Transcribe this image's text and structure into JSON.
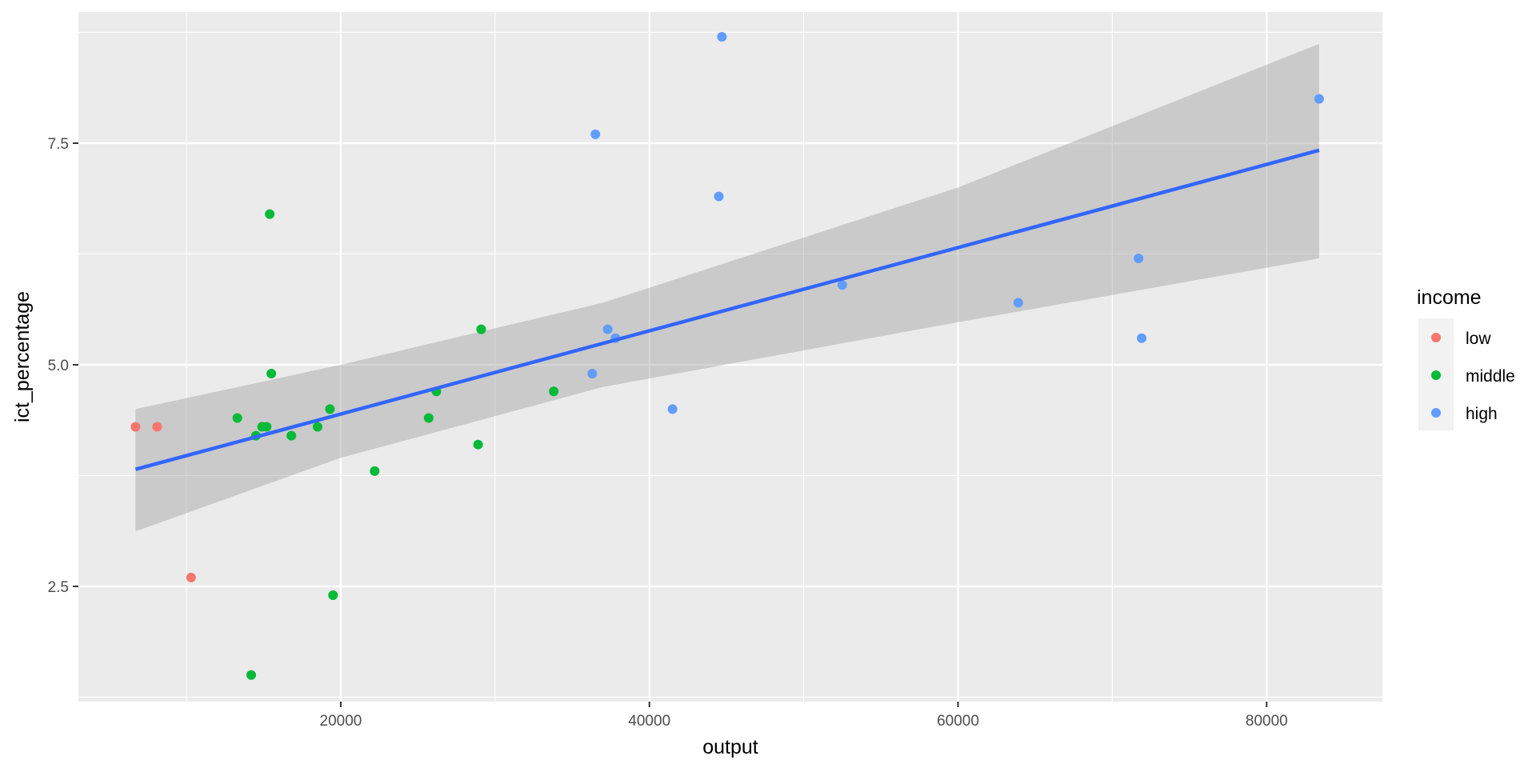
{
  "chart_data": {
    "type": "scatter",
    "xlabel": "output",
    "ylabel": "ict_percentage",
    "xlim": [
      3000,
      87500
    ],
    "ylim": [
      1.2,
      8.98
    ],
    "x_ticks": [
      20000,
      40000,
      60000,
      80000
    ],
    "x_tick_labels": [
      "20000",
      "40000",
      "60000",
      "80000"
    ],
    "y_ticks": [
      2.5,
      5.0,
      7.5
    ],
    "y_tick_labels": [
      "2.5",
      "5.0",
      "7.5"
    ],
    "grid": true,
    "legend": {
      "title": "income",
      "placement": "right"
    },
    "series": [
      {
        "name": "low",
        "color": "#F8766D",
        "points": [
          {
            "x": 6700,
            "y": 4.3
          },
          {
            "x": 8100,
            "y": 4.3
          },
          {
            "x": 10300,
            "y": 2.6
          }
        ]
      },
      {
        "name": "middle",
        "color": "#00BA38",
        "points": [
          {
            "x": 13300,
            "y": 4.4
          },
          {
            "x": 14200,
            "y": 1.5
          },
          {
            "x": 14500,
            "y": 4.2
          },
          {
            "x": 14900,
            "y": 4.3
          },
          {
            "x": 15200,
            "y": 4.3
          },
          {
            "x": 15400,
            "y": 6.7
          },
          {
            "x": 15500,
            "y": 4.9
          },
          {
            "x": 16800,
            "y": 4.2
          },
          {
            "x": 18500,
            "y": 4.3
          },
          {
            "x": 19300,
            "y": 4.5
          },
          {
            "x": 19500,
            "y": 2.4
          },
          {
            "x": 22200,
            "y": 3.8
          },
          {
            "x": 25700,
            "y": 4.4
          },
          {
            "x": 26200,
            "y": 4.7
          },
          {
            "x": 28900,
            "y": 4.1
          },
          {
            "x": 29100,
            "y": 5.4
          },
          {
            "x": 33800,
            "y": 4.7
          }
        ]
      },
      {
        "name": "high",
        "color": "#619CFF",
        "points": [
          {
            "x": 36300,
            "y": 4.9
          },
          {
            "x": 36500,
            "y": 7.6
          },
          {
            "x": 37300,
            "y": 5.4
          },
          {
            "x": 37800,
            "y": 5.3
          },
          {
            "x": 41500,
            "y": 4.5
          },
          {
            "x": 44500,
            "y": 6.9
          },
          {
            "x": 44700,
            "y": 8.7
          },
          {
            "x": 52500,
            "y": 5.9
          },
          {
            "x": 63900,
            "y": 5.7
          },
          {
            "x": 71700,
            "y": 6.2
          },
          {
            "x": 71900,
            "y": 5.3
          },
          {
            "x": 83400,
            "y": 8.0
          }
        ]
      }
    ],
    "trend_line": {
      "color": "#3366FF",
      "x": [
        6700,
        83400
      ],
      "y": [
        3.82,
        7.42
      ],
      "band_color": "#999999",
      "band_upper": [
        [
          6700,
          4.5
        ],
        [
          20000,
          5.0
        ],
        [
          37000,
          5.7
        ],
        [
          60000,
          7.0
        ],
        [
          83400,
          8.62
        ]
      ],
      "band_lower": [
        [
          6700,
          3.12
        ],
        [
          20000,
          3.95
        ],
        [
          37000,
          4.75
        ],
        [
          60000,
          5.48
        ],
        [
          83400,
          6.2
        ]
      ]
    }
  }
}
